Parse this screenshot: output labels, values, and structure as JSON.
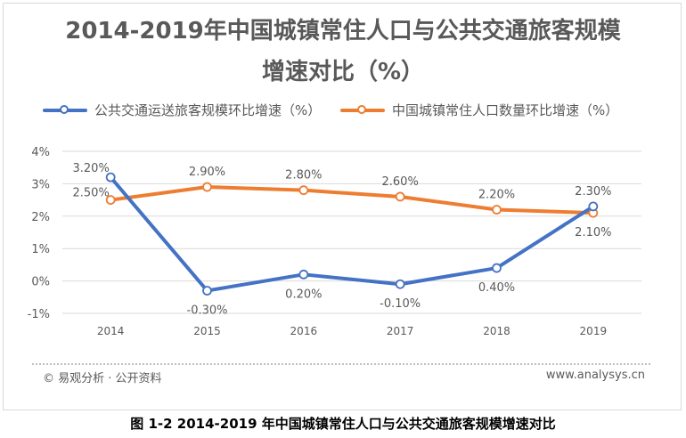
{
  "colors": {
    "series1": "#4472c4",
    "series2": "#ed7d31",
    "grid": "#d9d9d9",
    "text": "#595959"
  },
  "chart_data": {
    "type": "line",
    "title_line1": "2014-2019年中国城镇常住人口与公共交通旅客规模",
    "title_line2": "增速对比（%）",
    "x": [
      "2014",
      "2015",
      "2016",
      "2017",
      "2018",
      "2019"
    ],
    "ylim": [
      -1,
      4
    ],
    "yticks": [
      "-1%",
      "0%",
      "1%",
      "2%",
      "3%",
      "4%"
    ],
    "series": [
      {
        "name": "公共交通运送旅客规模环比增速（%）",
        "values": [
          3.2,
          -0.3,
          0.2,
          -0.1,
          0.4,
          2.3
        ],
        "labels": [
          "3.20%",
          "-0.30%",
          "0.20%",
          "-0.10%",
          "0.40%",
          "2.30%"
        ]
      },
      {
        "name": "中国城镇常住人口数量环比增速（%）",
        "values": [
          2.5,
          2.9,
          2.8,
          2.6,
          2.2,
          2.1
        ],
        "labels": [
          "2.50%",
          "2.90%",
          "2.80%",
          "2.60%",
          "2.20%",
          "2.10%"
        ]
      }
    ],
    "grid": true,
    "legend": "top"
  },
  "footer": {
    "source": "© 易观分析 · 公开资料",
    "site": "www.analysys.cn"
  },
  "caption": "图 1-2 2014-2019 年中国城镇常住人口与公共交通旅客规模增速对比"
}
